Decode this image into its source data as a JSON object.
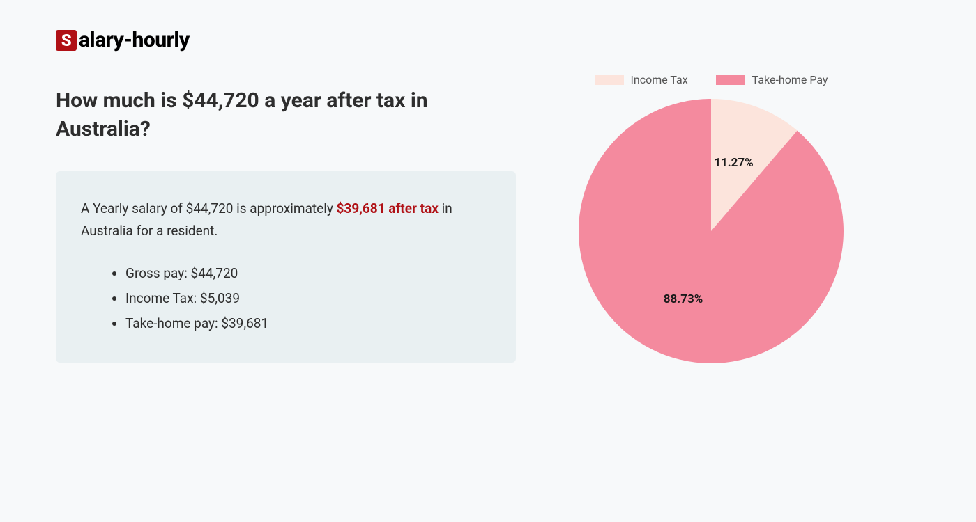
{
  "logo": {
    "badge_letter": "S",
    "rest": "alary-hourly",
    "badge_bg": "#b01116",
    "badge_fg": "#ffffff"
  },
  "title": "How much is $44,720 a year after tax in Australia?",
  "summary": {
    "prefix": "A Yearly salary of $44,720 is approximately ",
    "highlight": "$39,681 after tax",
    "suffix": " in Australia for a resident.",
    "highlight_color": "#b01116"
  },
  "breakdown": [
    "Gross pay: $44,720",
    "Income Tax: $5,039",
    "Take-home pay: $39,681"
  ],
  "chart": {
    "type": "pie",
    "background_color": "#f7f9fa",
    "radius": 190,
    "slices": [
      {
        "label": "Income Tax",
        "value": 11.27,
        "color": "#fce4dc",
        "display": "11.27%"
      },
      {
        "label": "Take-home Pay",
        "value": 88.73,
        "color": "#f48a9e",
        "display": "88.73%"
      }
    ],
    "legend_fontsize": 16,
    "legend_text_color": "#555555",
    "label_fontsize": 17,
    "label_font_weight": 700,
    "label_color": "#1a1a1a",
    "start_angle_deg": 0,
    "summary_box_bg": "#e9f0f2"
  }
}
